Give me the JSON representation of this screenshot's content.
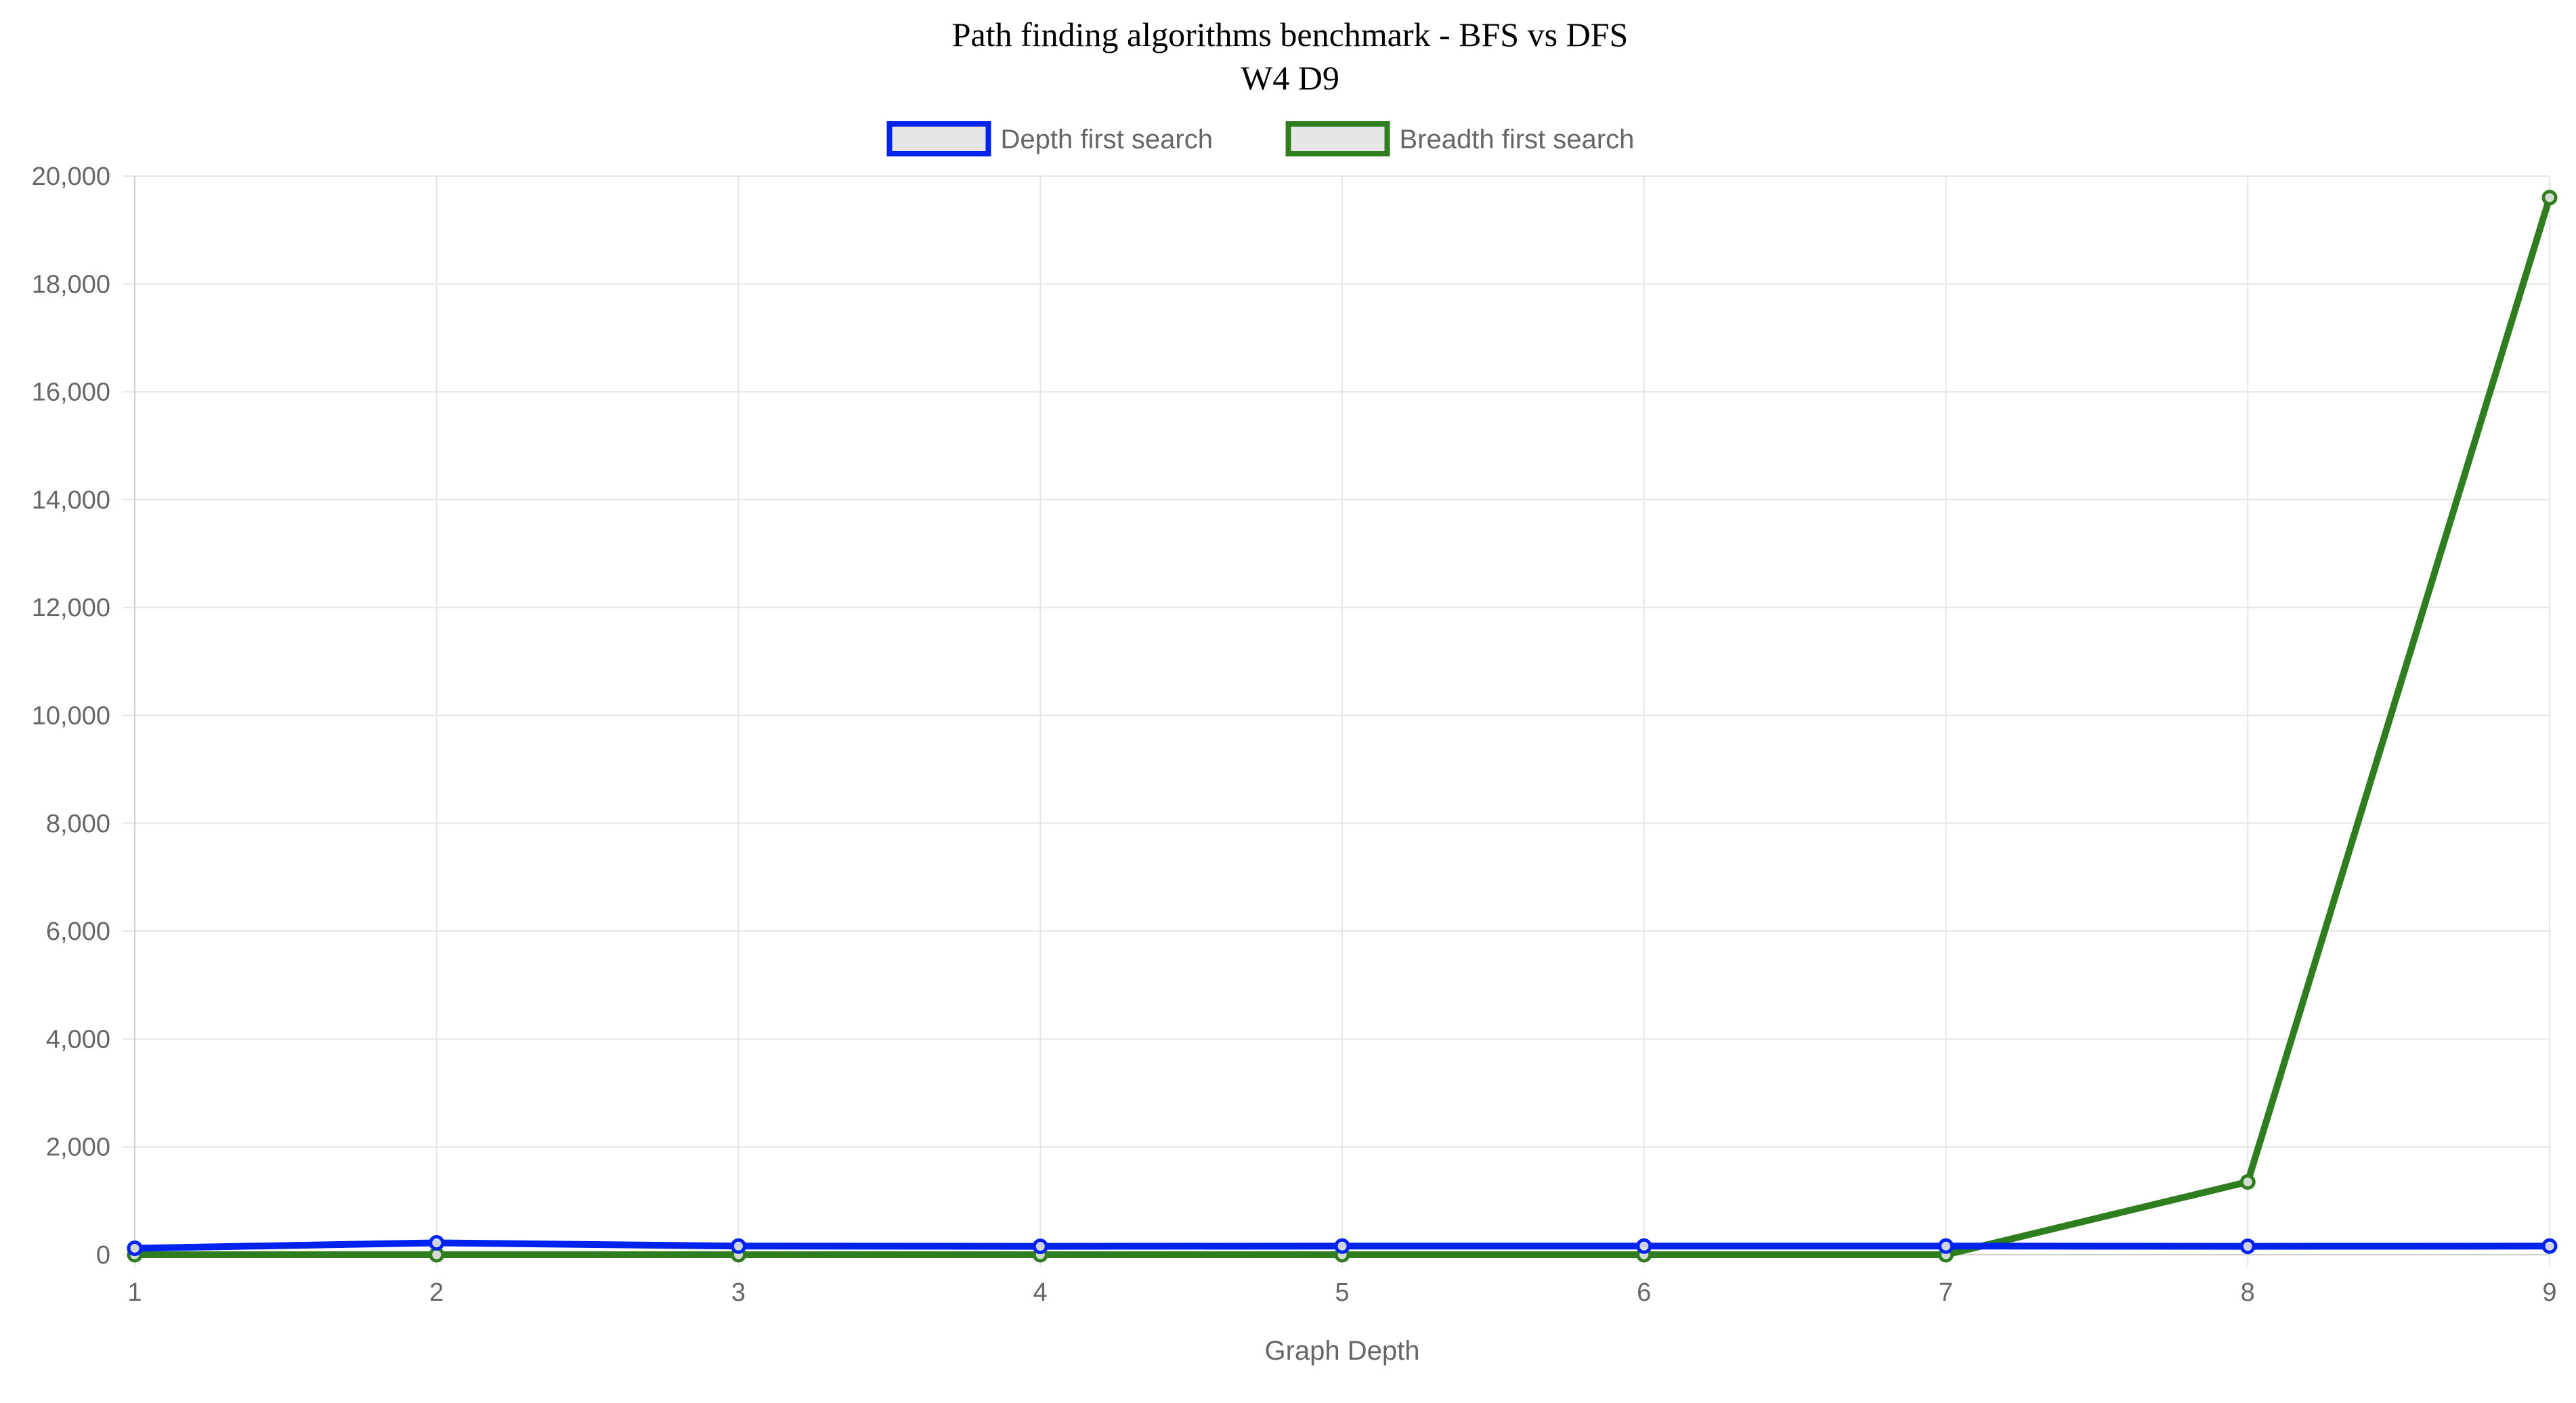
{
  "chart_data": {
    "type": "line",
    "title": "Path finding algorithms benchmark - BFS vs DFS",
    "subtitle": "W4 D9",
    "xlabel": "Graph Depth",
    "ylabel": "",
    "categories": [
      "1",
      "2",
      "3",
      "4",
      "5",
      "6",
      "7",
      "8",
      "9"
    ],
    "ylim": [
      0,
      20000
    ],
    "yticks": [
      0,
      2000,
      4000,
      6000,
      8000,
      10000,
      12000,
      14000,
      16000,
      18000,
      20000
    ],
    "ytick_labels": [
      "0",
      "2,000",
      "4,000",
      "6,000",
      "8,000",
      "10,000",
      "12,000",
      "14,000",
      "16,000",
      "18,000",
      "20,000"
    ],
    "grid": true,
    "legend_position": "top",
    "series": [
      {
        "name": "Depth first search",
        "color": "#0022ee",
        "values": [
          120,
          220,
          160,
          155,
          160,
          160,
          160,
          155,
          160
        ]
      },
      {
        "name": "Breadth first search",
        "color": "#2e7d1e",
        "values": [
          0,
          0,
          0,
          0,
          0,
          0,
          0,
          1350,
          19600
        ]
      }
    ]
  }
}
